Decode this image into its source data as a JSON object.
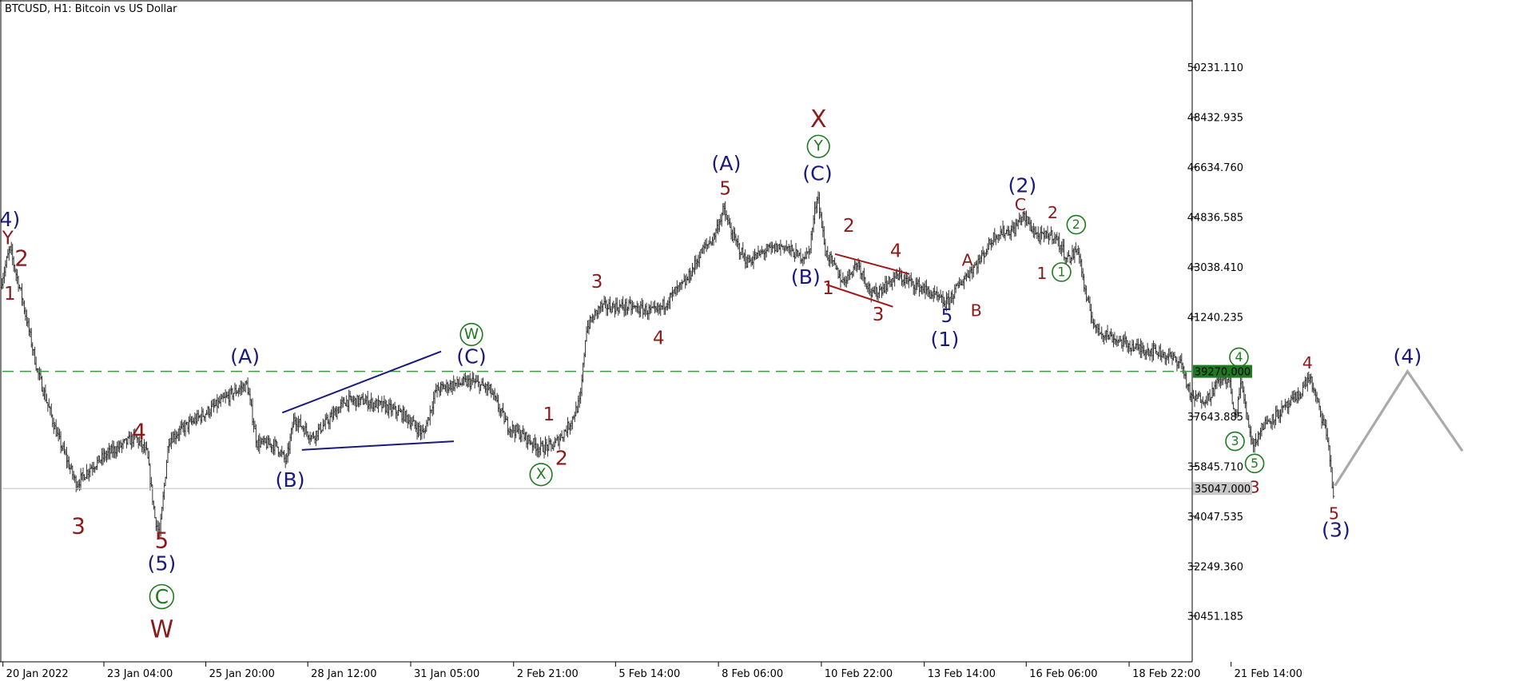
{
  "title": "BTCUSD, H1:  Bitcoin vs US Dollar",
  "chart_data": {
    "type": "ohlc",
    "symbol": "BTCUSD",
    "timeframe": "H1",
    "description": "Bitcoin vs US Dollar",
    "ylim": [
      28800,
      52600
    ],
    "y_ticks": [
      "50231.110",
      "48432.935",
      "46634.760",
      "44836.585",
      "43038.410",
      "41240.235",
      "37643.885",
      "35845.710",
      "34047.535",
      "32249.360",
      "30451.185"
    ],
    "x_ticks": [
      "20 Jan 2022",
      "23 Jan 04:00",
      "25 Jan 20:00",
      "28 Jan 12:00",
      "31 Jan 05:00",
      "2 Feb 21:00",
      "5 Feb 14:00",
      "8 Feb 06:00",
      "10 Feb 22:00",
      "13 Feb 14:00",
      "16 Feb 06:00",
      "18 Feb 22:00",
      "21 Feb 14:00"
    ],
    "price_path": [
      [
        0,
        42300
      ],
      [
        10,
        43700
      ],
      [
        22,
        42000
      ],
      [
        38,
        39300
      ],
      [
        58,
        37000
      ],
      [
        78,
        35200
      ],
      [
        92,
        35800
      ],
      [
        110,
        36300
      ],
      [
        138,
        36900
      ],
      [
        150,
        36300
      ],
      [
        158,
        34000
      ],
      [
        163,
        33400
      ],
      [
        172,
        36800
      ],
      [
        190,
        37300
      ],
      [
        215,
        37900
      ],
      [
        238,
        38500
      ],
      [
        252,
        38800
      ],
      [
        262,
        36700
      ],
      [
        282,
        36600
      ],
      [
        292,
        36000
      ],
      [
        300,
        37600
      ],
      [
        318,
        36900
      ],
      [
        335,
        37500
      ],
      [
        352,
        38200
      ],
      [
        372,
        38200
      ],
      [
        392,
        38000
      ],
      [
        412,
        37700
      ],
      [
        432,
        37000
      ],
      [
        445,
        38600
      ],
      [
        462,
        38800
      ],
      [
        482,
        38900
      ],
      [
        500,
        38600
      ],
      [
        518,
        37300
      ],
      [
        532,
        37000
      ],
      [
        550,
        36500
      ],
      [
        565,
        36600
      ],
      [
        580,
        37300
      ],
      [
        592,
        38200
      ],
      [
        598,
        40800
      ],
      [
        612,
        41600
      ],
      [
        640,
        41600
      ],
      [
        670,
        41400
      ],
      [
        688,
        42100
      ],
      [
        700,
        42500
      ],
      [
        716,
        43600
      ],
      [
        728,
        44100
      ],
      [
        738,
        45100
      ],
      [
        748,
        44100
      ],
      [
        762,
        43200
      ],
      [
        780,
        43600
      ],
      [
        800,
        43800
      ],
      [
        815,
        43400
      ],
      [
        825,
        43500
      ],
      [
        834,
        45700
      ],
      [
        842,
        43600
      ],
      [
        860,
        42500
      ],
      [
        875,
        43200
      ],
      [
        890,
        42000
      ],
      [
        915,
        42700
      ],
      [
        940,
        42300
      ],
      [
        965,
        41700
      ],
      [
        985,
        42700
      ],
      [
        1000,
        43300
      ],
      [
        1015,
        44200
      ],
      [
        1035,
        44400
      ],
      [
        1043,
        44900
      ],
      [
        1060,
        44100
      ],
      [
        1075,
        44200
      ],
      [
        1090,
        43300
      ],
      [
        1100,
        43700
      ],
      [
        1108,
        41900
      ],
      [
        1118,
        40800
      ],
      [
        1140,
        40400
      ],
      [
        1160,
        40100
      ],
      [
        1180,
        40000
      ],
      [
        1205,
        39600
      ],
      [
        1215,
        38300
      ],
      [
        1232,
        38300
      ],
      [
        1245,
        39000
      ],
      [
        1254,
        39000
      ],
      [
        1260,
        37500
      ],
      [
        1266,
        38900
      ],
      [
        1278,
        36600
      ],
      [
        1290,
        37400
      ],
      [
        1310,
        37900
      ],
      [
        1325,
        38400
      ],
      [
        1336,
        39100
      ],
      [
        1345,
        38000
      ],
      [
        1355,
        36800
      ],
      [
        1361,
        34500
      ]
    ],
    "hlines": [
      {
        "price": 39270.0,
        "label": "39270.000",
        "style": "dashed",
        "color": "#3a9a3a"
      },
      {
        "price": 35047.0,
        "label": "35047.000",
        "style": "solid",
        "color": "#c8c8c8"
      }
    ],
    "projection": {
      "points": [
        [
          1362,
          35150
        ],
        [
          1436,
          39270
        ],
        [
          1492,
          36400
        ]
      ],
      "label": "(4)"
    },
    "trendlines": [
      {
        "points": [
          [
            288,
            37780
          ],
          [
            450,
            39990
          ]
        ],
        "color": "#1a1a7e"
      },
      {
        "points": [
          [
            308,
            36440
          ],
          [
            463,
            36750
          ]
        ],
        "color": "#1a1a7e"
      },
      {
        "points": [
          [
            852,
            43500
          ],
          [
            928,
            42780
          ]
        ],
        "color": "#a01818"
      },
      {
        "points": [
          [
            843,
            42400
          ],
          [
            911,
            41600
          ]
        ],
        "color": "#a01818"
      }
    ],
    "annotations": [
      {
        "text": "4)",
        "x": 10,
        "price": 44750,
        "color": "#1a1a7e",
        "size": 22
      },
      {
        "text": "Y",
        "x": 8,
        "price": 44050,
        "color": "#8b1a1a",
        "size": 20
      },
      {
        "text": "2",
        "x": 22,
        "price": 43350,
        "color": "#8b1a1a",
        "size": 24
      },
      {
        "text": "1",
        "x": 10,
        "price": 42050,
        "color": "#8b1a1a",
        "size": 20
      },
      {
        "text": "(A)",
        "x": 250,
        "price": 39800,
        "color": "#1a1a7e",
        "size": 22
      },
      {
        "text": "4",
        "x": 142,
        "price": 37100,
        "color": "#8b1a1a",
        "size": 24
      },
      {
        "text": "3",
        "x": 80,
        "price": 33700,
        "color": "#8b1a1a",
        "size": 24
      },
      {
        "text": "5",
        "x": 165,
        "price": 33180,
        "color": "#8b1a1a",
        "size": 24
      },
      {
        "text": "(5)",
        "x": 165,
        "price": 32350,
        "color": "#1a1a7e",
        "size": 22
      },
      {
        "text": "C",
        "x": 165,
        "price": 31150,
        "color": "#1f7a1f",
        "size": 24,
        "circle": true,
        "r": 13
      },
      {
        "text": "W",
        "x": 165,
        "price": 29950,
        "color": "#8b1a1a",
        "size": 26
      },
      {
        "text": "(B)",
        "x": 296,
        "price": 35350,
        "color": "#1a1a7e",
        "size": 22
      },
      {
        "text": "W",
        "x": 481,
        "price": 40600,
        "color": "#1f7a1f",
        "size": 18,
        "circle": true,
        "r": 12
      },
      {
        "text": "(C)",
        "x": 481,
        "price": 39800,
        "color": "#1a1a7e",
        "size": 22
      },
      {
        "text": "1",
        "x": 560,
        "price": 37700,
        "color": "#8b1a1a",
        "size": 20
      },
      {
        "text": "2",
        "x": 573,
        "price": 36150,
        "color": "#8b1a1a",
        "size": 22
      },
      {
        "text": "X",
        "x": 552,
        "price": 35550,
        "color": "#1f7a1f",
        "size": 18,
        "circle": true,
        "r": 12
      },
      {
        "text": "3",
        "x": 609,
        "price": 42480,
        "color": "#8b1a1a",
        "size": 20
      },
      {
        "text": "4",
        "x": 672,
        "price": 40450,
        "color": "#8b1a1a",
        "size": 20
      },
      {
        "text": "(A)",
        "x": 741,
        "price": 46770,
        "color": "#1a1a7e",
        "size": 22
      },
      {
        "text": "5",
        "x": 740,
        "price": 45840,
        "color": "#8b1a1a",
        "size": 20
      },
      {
        "text": "X",
        "x": 835,
        "price": 48350,
        "color": "#8b1a1a",
        "size": 26
      },
      {
        "text": "Y",
        "x": 835,
        "price": 47380,
        "color": "#1f7a1f",
        "size": 18,
        "circle": true,
        "r": 12
      },
      {
        "text": "(C)",
        "x": 834,
        "price": 46400,
        "color": "#1a1a7e",
        "size": 22
      },
      {
        "text": "2",
        "x": 866,
        "price": 44500,
        "color": "#8b1a1a",
        "size": 20
      },
      {
        "text": "4",
        "x": 914,
        "price": 43600,
        "color": "#8b1a1a",
        "size": 20
      },
      {
        "text": "(B)",
        "x": 822,
        "price": 42670,
        "color": "#1a1a7e",
        "size": 22
      },
      {
        "text": "1",
        "x": 845,
        "price": 42250,
        "color": "#8b1a1a",
        "size": 20
      },
      {
        "text": "3",
        "x": 896,
        "price": 41300,
        "color": "#8b1a1a",
        "size": 20
      },
      {
        "text": "A",
        "x": 987,
        "price": 43280,
        "color": "#8b1a1a",
        "size": 18
      },
      {
        "text": "5",
        "x": 966,
        "price": 41250,
        "color": "#1a1a7e",
        "size": 20
      },
      {
        "text": "B",
        "x": 996,
        "price": 41470,
        "color": "#8b1a1a",
        "size": 18
      },
      {
        "text": "(1)",
        "x": 964,
        "price": 40420,
        "color": "#1a1a7e",
        "size": 22
      },
      {
        "text": "(2)",
        "x": 1043,
        "price": 45970,
        "color": "#1a1a7e",
        "size": 22
      },
      {
        "text": "C",
        "x": 1041,
        "price": 45280,
        "color": "#8b1a1a",
        "size": 18
      },
      {
        "text": "2",
        "x": 1074,
        "price": 45000,
        "color": "#8b1a1a",
        "size": 18
      },
      {
        "text": "2",
        "x": 1098,
        "price": 44560,
        "color": "#1f7a1f",
        "size": 15,
        "circle": true,
        "r": 10
      },
      {
        "text": "1",
        "x": 1063,
        "price": 42800,
        "color": "#8b1a1a",
        "size": 18
      },
      {
        "text": "1",
        "x": 1083,
        "price": 42850,
        "color": "#1f7a1f",
        "size": 15,
        "circle": true,
        "r": 10
      },
      {
        "text": "4",
        "x": 1264,
        "price": 39780,
        "color": "#1f7a1f",
        "size": 15,
        "circle": true,
        "r": 10
      },
      {
        "text": "4",
        "x": 1334,
        "price": 39570,
        "color": "#8b1a1a",
        "size": 18
      },
      {
        "text": "(4)",
        "x": 1436,
        "price": 39800,
        "color": "#1a1a7e",
        "size": 22
      },
      {
        "text": "3",
        "x": 1260,
        "price": 36750,
        "color": "#1f7a1f",
        "size": 15,
        "circle": true,
        "r": 10
      },
      {
        "text": "5",
        "x": 1280,
        "price": 35950,
        "color": "#1f7a1f",
        "size": 15,
        "circle": true,
        "r": 10
      },
      {
        "text": "3",
        "x": 1280,
        "price": 35090,
        "color": "#8b1a1a",
        "size": 18
      },
      {
        "text": "5",
        "x": 1361,
        "price": 34150,
        "color": "#8b1a1a",
        "size": 18
      },
      {
        "text": "(3)",
        "x": 1363,
        "price": 33560,
        "color": "#1a1a7e",
        "size": 22
      }
    ]
  }
}
